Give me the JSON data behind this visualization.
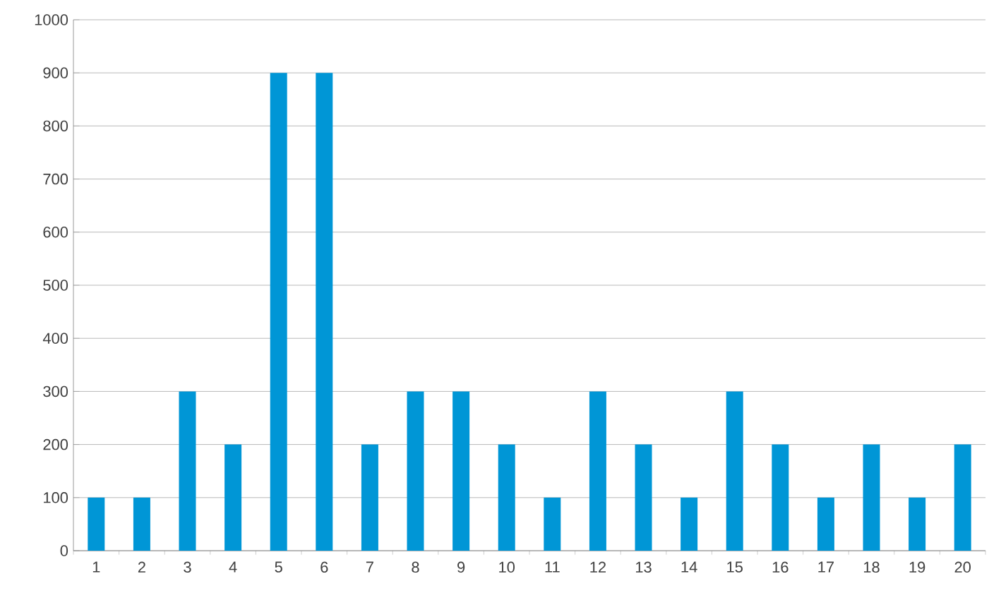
{
  "chart_data": {
    "type": "bar",
    "categories": [
      "1",
      "2",
      "3",
      "4",
      "5",
      "6",
      "7",
      "8",
      "9",
      "10",
      "11",
      "12",
      "13",
      "14",
      "15",
      "16",
      "17",
      "18",
      "19",
      "20"
    ],
    "values": [
      100,
      100,
      300,
      200,
      900,
      900,
      200,
      300,
      300,
      200,
      100,
      300,
      200,
      100,
      300,
      200,
      100,
      200,
      100,
      200
    ],
    "color": "#0096d6",
    "ylim": [
      0,
      1000
    ],
    "yticks": [
      0,
      100,
      200,
      300,
      400,
      500,
      600,
      700,
      800,
      900,
      1000
    ],
    "grid": "y"
  }
}
